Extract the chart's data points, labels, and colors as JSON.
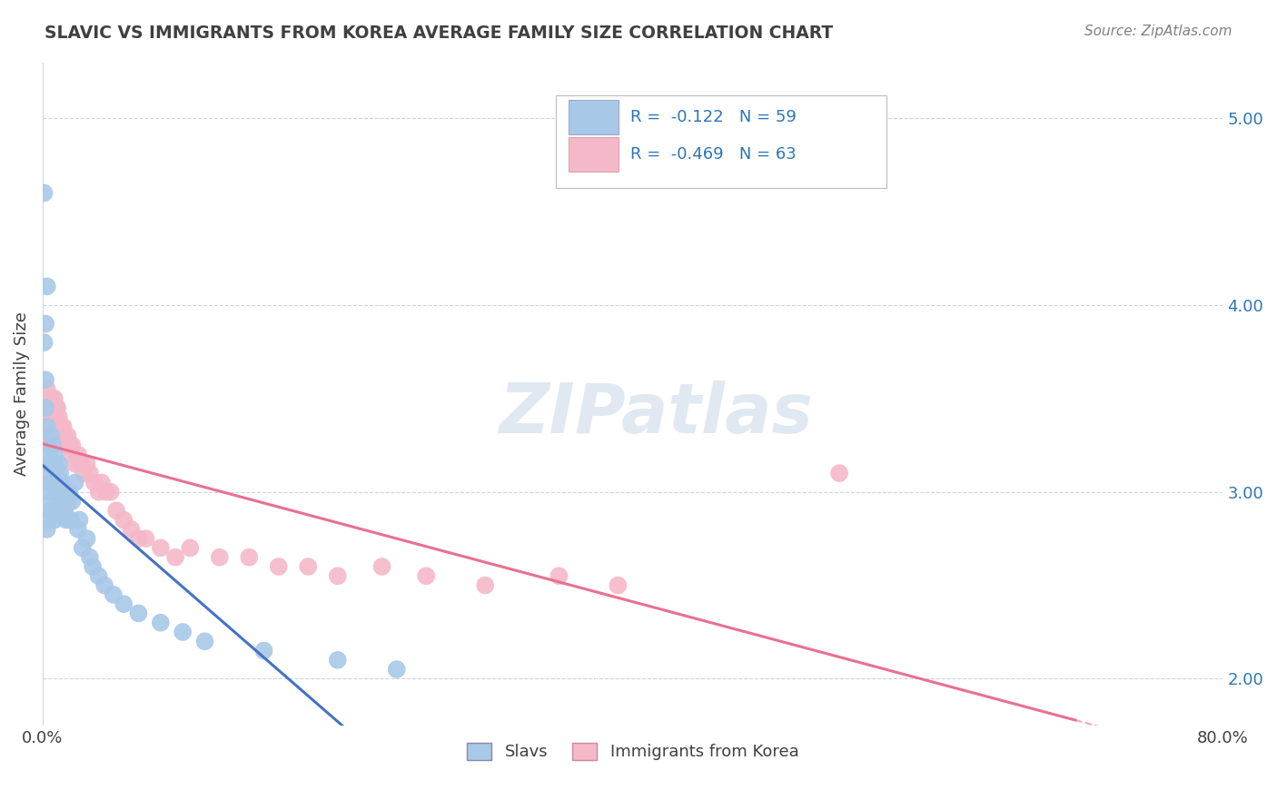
{
  "title": "SLAVIC VS IMMIGRANTS FROM KOREA AVERAGE FAMILY SIZE CORRELATION CHART",
  "source_text": "Source: ZipAtlas.com",
  "ylabel": "Average Family Size",
  "xlim": [
    0.0,
    0.8
  ],
  "ylim": [
    1.75,
    5.3
  ],
  "yticks": [
    2.0,
    3.0,
    4.0,
    5.0
  ],
  "xticks": [
    0.0,
    0.8
  ],
  "xtick_labels": [
    "0.0%",
    "80.0%"
  ],
  "ytick_labels": [
    "2.00",
    "3.00",
    "4.00",
    "5.00"
  ],
  "slavs": {
    "name": "Slavs",
    "R": -0.122,
    "N": 59,
    "color_scatter": "#a8c8e8",
    "color_line": "#4472c4",
    "x": [
      0.001,
      0.002,
      0.002,
      0.003,
      0.003,
      0.003,
      0.004,
      0.004,
      0.004,
      0.005,
      0.005,
      0.005,
      0.006,
      0.006,
      0.006,
      0.007,
      0.007,
      0.007,
      0.008,
      0.008,
      0.008,
      0.009,
      0.009,
      0.01,
      0.01,
      0.011,
      0.011,
      0.012,
      0.012,
      0.013,
      0.013,
      0.014,
      0.015,
      0.016,
      0.017,
      0.018,
      0.019,
      0.02,
      0.022,
      0.024,
      0.025,
      0.027,
      0.03,
      0.032,
      0.034,
      0.038,
      0.042,
      0.048,
      0.055,
      0.065,
      0.08,
      0.095,
      0.11,
      0.15,
      0.2,
      0.24,
      0.001,
      0.002,
      0.003
    ],
    "y": [
      4.6,
      3.45,
      3.6,
      3.15,
      2.8,
      3.35,
      3.0,
      3.2,
      2.85,
      3.05,
      2.9,
      3.1,
      3.3,
      3.15,
      2.95,
      3.25,
      3.05,
      2.9,
      3.15,
      3.2,
      2.85,
      3.0,
      3.1,
      3.05,
      2.9,
      3.15,
      3.0,
      3.1,
      2.95,
      3.05,
      2.9,
      3.0,
      2.9,
      2.85,
      2.95,
      3.0,
      2.85,
      2.95,
      3.05,
      2.8,
      2.85,
      2.7,
      2.75,
      2.65,
      2.6,
      2.55,
      2.5,
      2.45,
      2.4,
      2.35,
      2.3,
      2.25,
      2.2,
      2.15,
      2.1,
      2.05,
      3.8,
      3.9,
      4.1
    ],
    "line_x_end": 0.3
  },
  "korea": {
    "name": "Immigrants from Korea",
    "R": -0.469,
    "N": 63,
    "color_scatter": "#f4b8c8",
    "color_line": "#e97090",
    "x": [
      0.002,
      0.003,
      0.003,
      0.004,
      0.004,
      0.005,
      0.005,
      0.006,
      0.006,
      0.007,
      0.007,
      0.008,
      0.008,
      0.009,
      0.009,
      0.01,
      0.01,
      0.011,
      0.012,
      0.013,
      0.014,
      0.015,
      0.016,
      0.017,
      0.018,
      0.019,
      0.02,
      0.022,
      0.024,
      0.026,
      0.028,
      0.03,
      0.032,
      0.035,
      0.038,
      0.04,
      0.043,
      0.046,
      0.05,
      0.055,
      0.06,
      0.065,
      0.07,
      0.08,
      0.09,
      0.1,
      0.12,
      0.14,
      0.16,
      0.18,
      0.2,
      0.23,
      0.26,
      0.3,
      0.35,
      0.39,
      0.003,
      0.004,
      0.005,
      0.006,
      0.007,
      0.008,
      0.54
    ],
    "y": [
      3.5,
      3.55,
      3.45,
      3.5,
      3.4,
      3.45,
      3.4,
      3.45,
      3.5,
      3.4,
      3.45,
      3.4,
      3.5,
      3.4,
      3.45,
      3.35,
      3.45,
      3.4,
      3.35,
      3.3,
      3.35,
      3.3,
      3.25,
      3.3,
      3.25,
      3.2,
      3.25,
      3.15,
      3.2,
      3.15,
      3.1,
      3.15,
      3.1,
      3.05,
      3.0,
      3.05,
      3.0,
      3.0,
      2.9,
      2.85,
      2.8,
      2.75,
      2.75,
      2.7,
      2.65,
      2.7,
      2.65,
      2.65,
      2.6,
      2.6,
      2.55,
      2.6,
      2.55,
      2.5,
      2.55,
      2.5,
      3.35,
      3.3,
      3.25,
      3.4,
      3.35,
      3.45,
      3.1
    ],
    "line_x_end": 0.7
  },
  "legend_color": "#2e75b6",
  "watermark": "ZIPatlas",
  "watermark_color": "#c8d8e8",
  "background_color": "#ffffff",
  "grid_color": "#c8d4e8",
  "title_color": "#404040",
  "axis_label_color": "#404040",
  "right_ytick_color": "#2e75b6",
  "source_color": "#808080"
}
